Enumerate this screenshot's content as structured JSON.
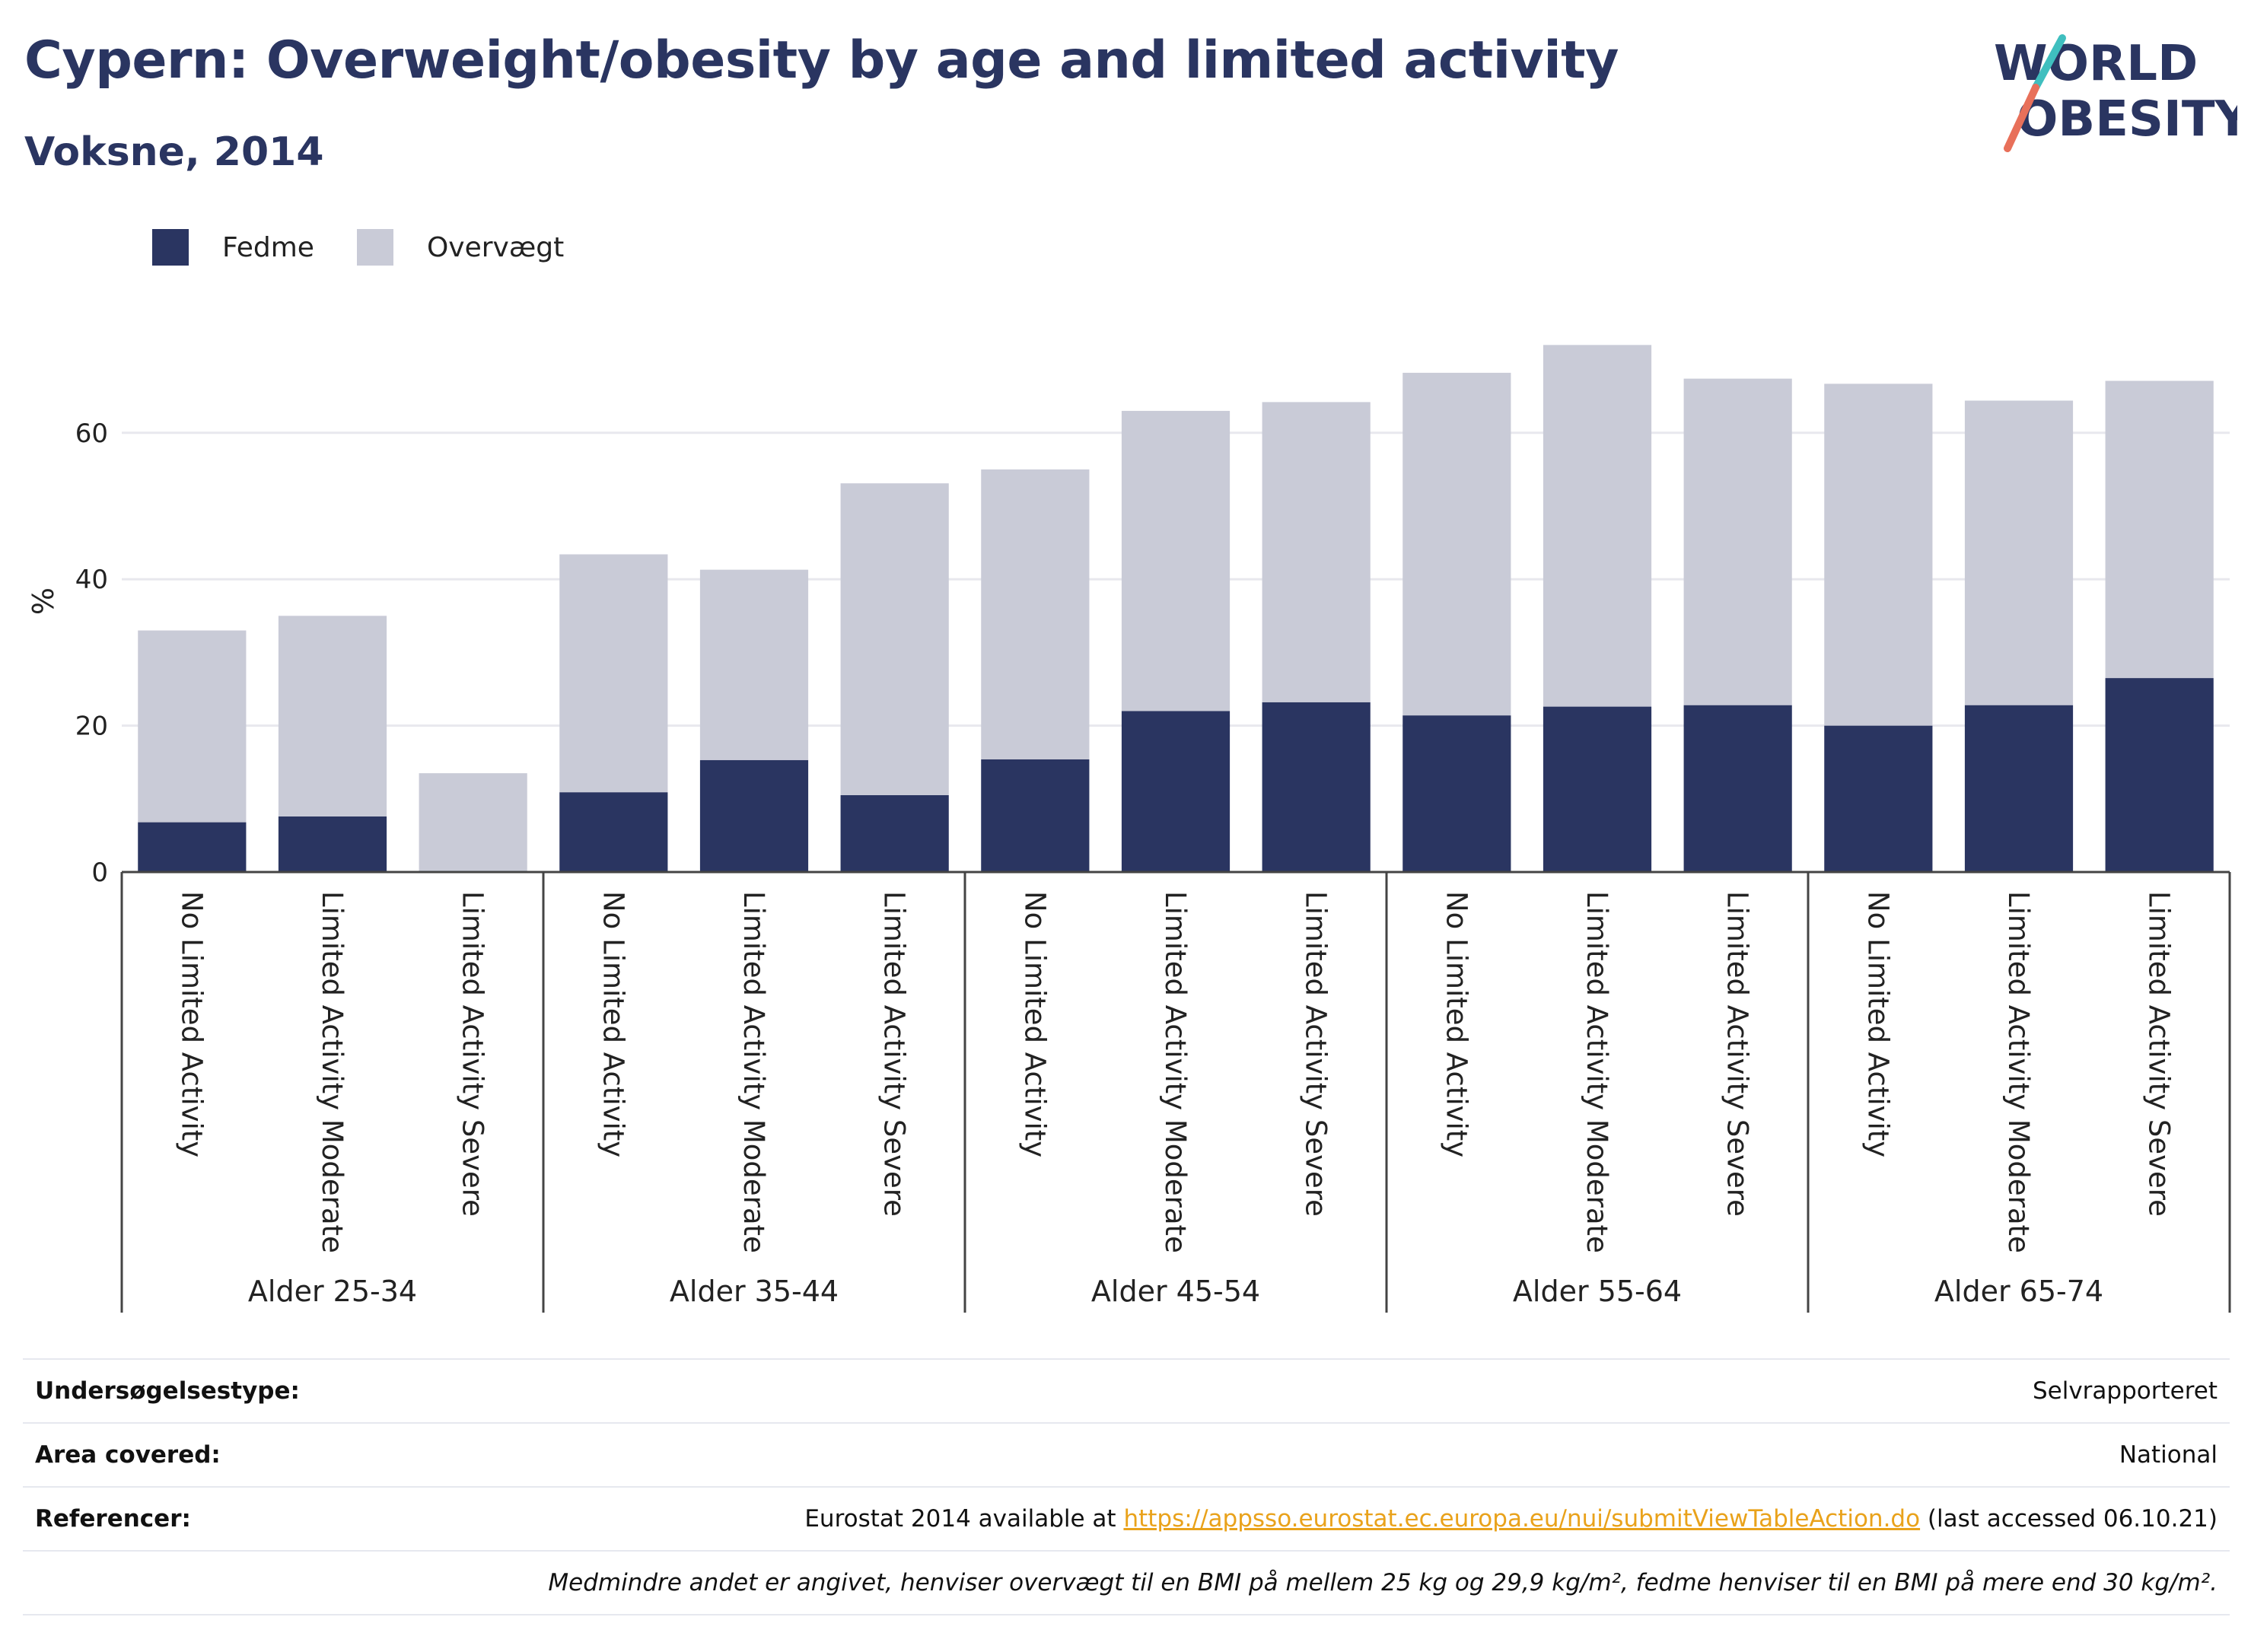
{
  "header": {
    "title": "Cypern: Overweight/obesity by age and limited activity",
    "subtitle": "Voksne, 2014"
  },
  "logo": {
    "line1": "WORLD",
    "line2": "OBESITY",
    "accent1": "#3fbfbf",
    "accent2": "#e8705a"
  },
  "colors": {
    "fedme": "#2a3561",
    "overvaegt": "#c9cbd7",
    "grid": "#e8e8ee",
    "axis": "#444444"
  },
  "chart_data": {
    "type": "bar",
    "stacked": true,
    "ylabel": "%",
    "ylim": [
      0,
      75
    ],
    "yticks": [
      0,
      20,
      40,
      60
    ],
    "grid": true,
    "legend_position": "top-left",
    "legend": [
      "Fedme",
      "Overvægt"
    ],
    "groups": [
      {
        "label": "Alder 25-34",
        "categories": [
          "No Limited Activity",
          "Limited Activity Moderate",
          "Limited Activity Severe"
        ]
      },
      {
        "label": "Alder 35-44",
        "categories": [
          "No Limited Activity",
          "Limited Activity Moderate",
          "Limited Activity Severe"
        ]
      },
      {
        "label": "Alder 45-54",
        "categories": [
          "No Limited Activity",
          "Limited Activity Moderate",
          "Limited Activity Severe"
        ]
      },
      {
        "label": "Alder 55-64",
        "categories": [
          "No Limited Activity",
          "Limited Activity Moderate",
          "Limited Activity Severe"
        ]
      },
      {
        "label": "Alder 65-74",
        "categories": [
          "No Limited Activity",
          "Limited Activity Moderate",
          "Limited Activity Severe"
        ]
      }
    ],
    "series": [
      {
        "name": "Fedme",
        "values": [
          6.8,
          7.6,
          0,
          10.9,
          15.3,
          10.5,
          15.4,
          22.0,
          23.2,
          21.4,
          22.6,
          22.8,
          20.0,
          22.8,
          26.5
        ]
      },
      {
        "name": "Overvægt",
        "values": [
          26.2,
          27.4,
          13.5,
          32.5,
          26.0,
          42.6,
          39.6,
          41.0,
          41.0,
          46.8,
          49.4,
          44.6,
          46.7,
          41.6,
          40.6
        ]
      }
    ]
  },
  "info": {
    "rows": [
      {
        "label": "Undersøgelsestype:",
        "value": "Selvrapporteret"
      },
      {
        "label": "Area covered:",
        "value": "National"
      },
      {
        "label": "Referencer:",
        "value_prefix": "Eurostat 2014 available at ",
        "link": "https://appsso.eurostat.ec.europa.eu/nui/submitViewTableAction.do",
        "value_suffix": " (last accessed 06.10.21)"
      }
    ],
    "note": "Medmindre andet er angivet, henviser overvægt til en BMI på mellem 25 kg og 29,9 kg/m², fedme henviser til en BMI på mere end 30 kg/m²."
  }
}
